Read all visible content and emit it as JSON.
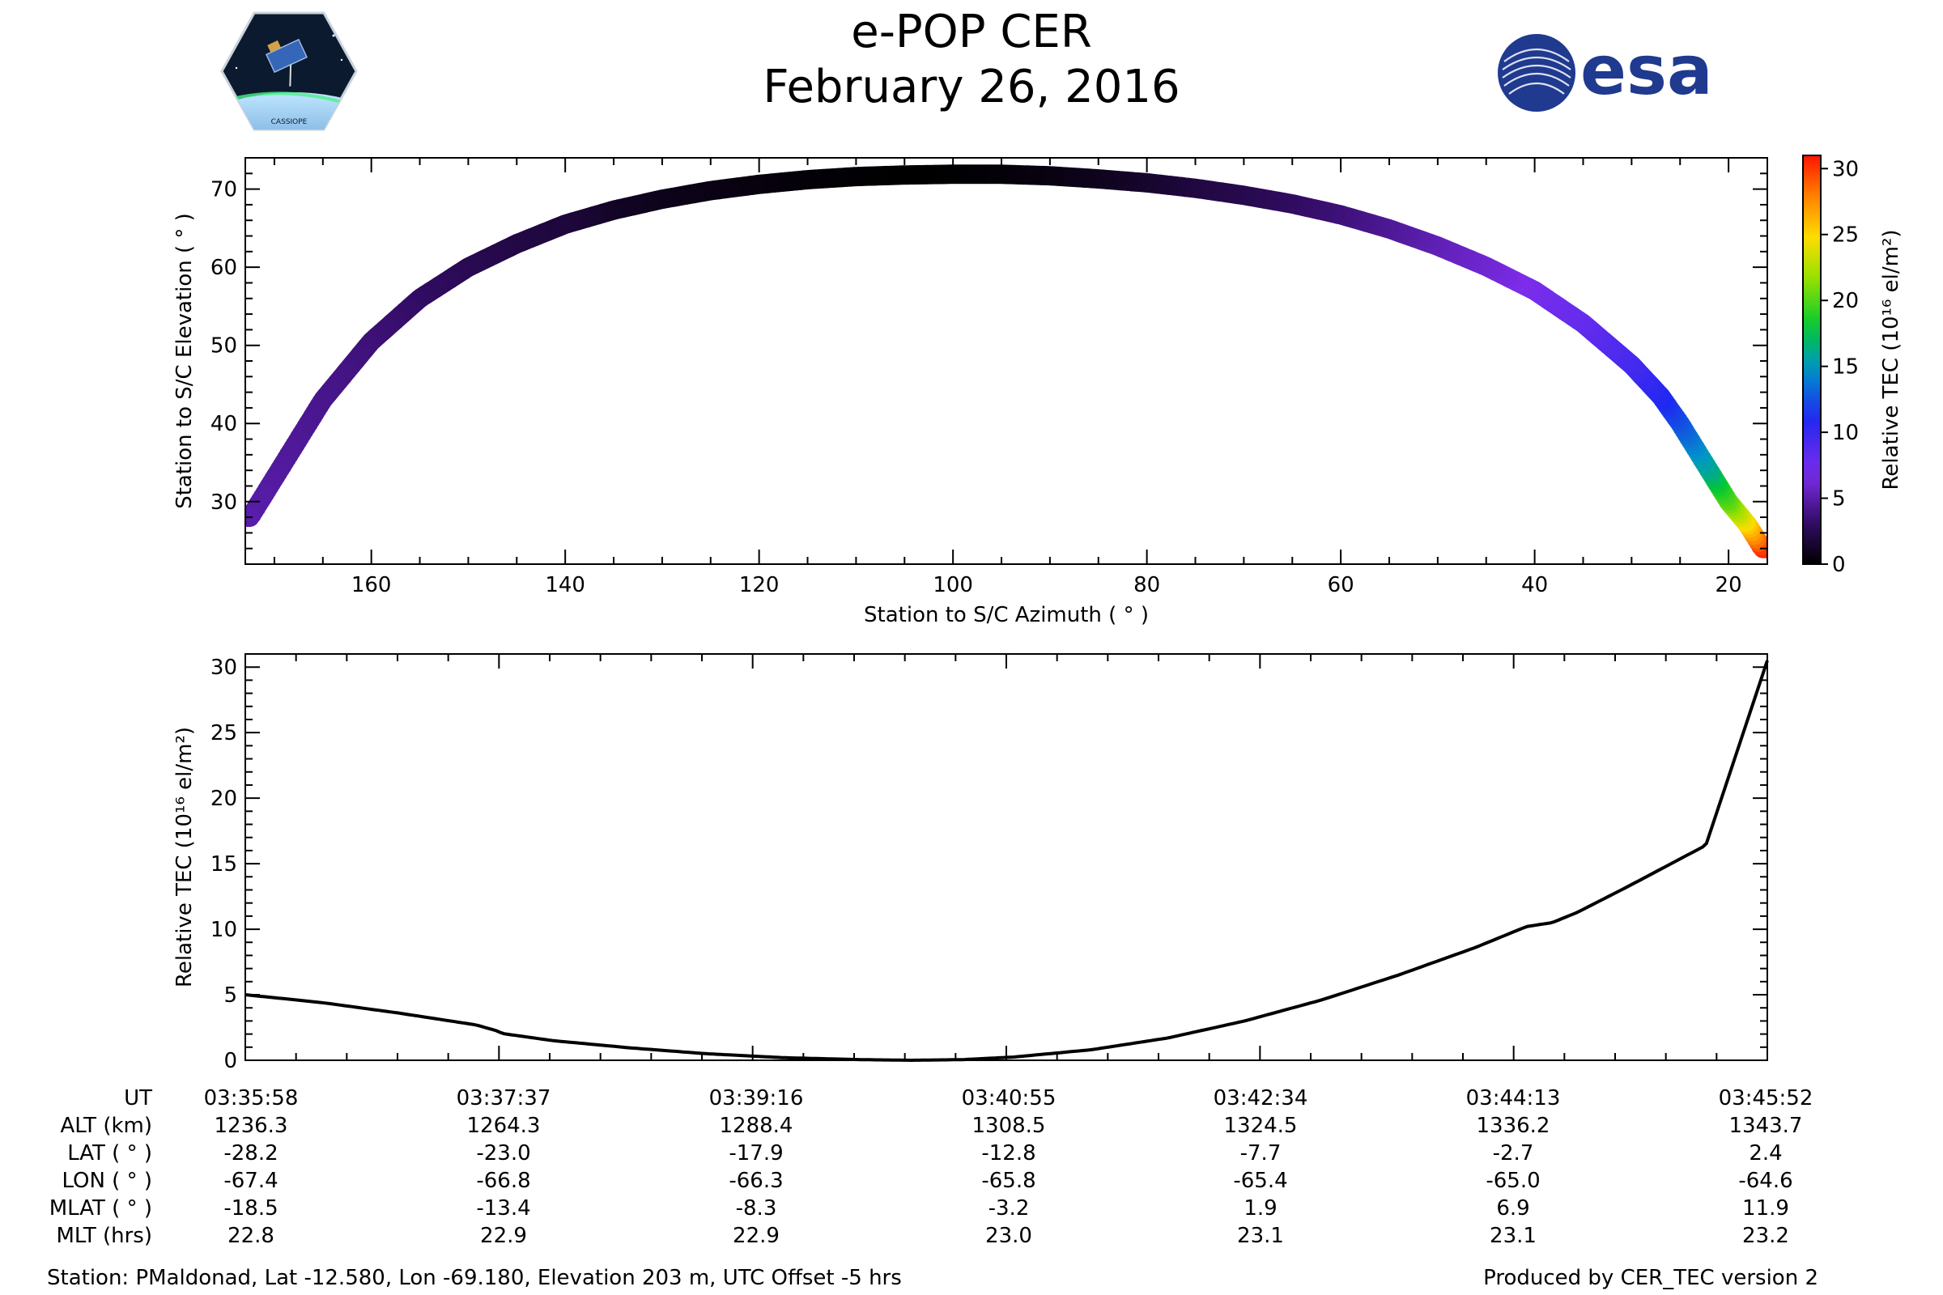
{
  "title": "e-POP CER",
  "subtitle": "February 26, 2016",
  "logos": {
    "left": "CASSIOPE",
    "right": "esa",
    "brand_colors": {
      "esa_blue": "#1f3a8f",
      "cassiope_dark": "#0b1a2e"
    }
  },
  "colorbar": {
    "label": "Relative TEC (10¹⁶ el/m²)",
    "ticks": [
      "0",
      "5",
      "10",
      "15",
      "20",
      "25",
      "30"
    ],
    "colormap": "gnuplot2-like: black → purple → blue → green → yellow → orange → red",
    "range": [
      0,
      31
    ]
  },
  "chart_data": [
    {
      "type": "scatter",
      "title": "",
      "xlabel": "Station to S/C Azimuth ( ° )",
      "ylabel": "Station to S/C Elevation ( ° )",
      "xlim": [
        173,
        16
      ],
      "ylim": [
        22,
        74
      ],
      "x_ticks": [
        160,
        140,
        120,
        100,
        80,
        60,
        40,
        20
      ],
      "y_ticks": [
        30,
        40,
        50,
        60,
        70
      ],
      "color_by": "Relative TEC",
      "x": [
        172.5,
        168,
        165,
        160,
        155,
        150,
        145,
        140,
        135,
        130,
        125,
        120,
        115,
        110,
        105,
        100,
        95,
        90,
        85,
        80,
        75,
        70,
        65,
        60,
        55,
        50,
        45,
        40,
        35,
        30,
        27,
        25,
        22,
        20,
        18,
        16.5
      ],
      "y": [
        28,
        37,
        43,
        50.5,
        56,
        60,
        63,
        65.5,
        67.3,
        68.7,
        69.8,
        70.6,
        71.2,
        71.6,
        71.8,
        71.9,
        71.9,
        71.7,
        71.3,
        70.8,
        70.1,
        69.2,
        68.1,
        66.7,
        64.9,
        62.7,
        60.1,
        57,
        52.8,
        47.5,
        43.5,
        40,
        34,
        30,
        27,
        24
      ],
      "c": [
        5,
        4.5,
        4.2,
        3.6,
        3.0,
        2.5,
        2.1,
        1.8,
        1.1,
        0.8,
        0.6,
        0.4,
        0.2,
        0.1,
        0.0,
        0.1,
        0.3,
        0.6,
        1.0,
        1.5,
        2.1,
        2.5,
        3.1,
        3.8,
        4.6,
        5.5,
        6.2,
        7.2,
        8.1,
        9.5,
        11.0,
        12.7,
        16.3,
        20.5,
        25.5,
        30.5
      ]
    },
    {
      "type": "line",
      "title": "",
      "xlabel": "",
      "ylabel": "Relative TEC (10¹⁶ el/m²)",
      "xlim": [
        0,
        594
      ],
      "ylim": [
        0,
        31
      ],
      "y_ticks": [
        0,
        5,
        10,
        15,
        20,
        25,
        30
      ],
      "x_ticks_labeled": [
        0,
        99,
        198,
        297,
        396,
        495,
        594
      ],
      "x_minor_step_seconds": 19.8,
      "x": [
        0,
        30,
        60,
        90,
        99,
        100,
        120,
        150,
        180,
        210,
        240,
        260,
        280,
        300,
        330,
        360,
        390,
        420,
        450,
        480,
        500,
        510,
        520,
        540,
        570,
        594
      ],
      "y": [
        5.0,
        4.4,
        3.6,
        2.7,
        2.2,
        2.05,
        1.5,
        0.95,
        0.5,
        0.2,
        0.05,
        0.0,
        0.05,
        0.25,
        0.8,
        1.7,
        3.0,
        4.6,
        6.5,
        8.6,
        10.2,
        10.5,
        11.3,
        13.3,
        16.4,
        30.5
      ]
    }
  ],
  "table": {
    "row_labels": [
      "UT",
      "ALT (km)",
      "LAT ( ° )",
      "LON ( ° )",
      "MLAT ( ° )",
      "MLT (hrs)"
    ],
    "columns": [
      [
        "03:35:58",
        "1236.3",
        "-28.2",
        "-67.4",
        "-18.5",
        "22.8"
      ],
      [
        "03:37:37",
        "1264.3",
        "-23.0",
        "-66.8",
        "-13.4",
        "22.9"
      ],
      [
        "03:39:16",
        "1288.4",
        "-17.9",
        "-66.3",
        "-8.3",
        "22.9"
      ],
      [
        "03:40:55",
        "1308.5",
        "-12.8",
        "-65.8",
        "-3.2",
        "23.0"
      ],
      [
        "03:42:34",
        "1324.5",
        "-7.7",
        "-65.4",
        "1.9",
        "23.1"
      ],
      [
        "03:44:13",
        "1336.2",
        "-2.7",
        "-65.0",
        "6.9",
        "23.1"
      ],
      [
        "03:45:52",
        "1343.7",
        "2.4",
        "-64.6",
        "11.9",
        "23.2"
      ]
    ]
  },
  "footer": {
    "station": "Station: PMaldonad, Lat -12.580, Lon -69.180, Elevation 203 m, UTC Offset -5 hrs",
    "produced_by": "Produced by CER_TEC version 2"
  }
}
